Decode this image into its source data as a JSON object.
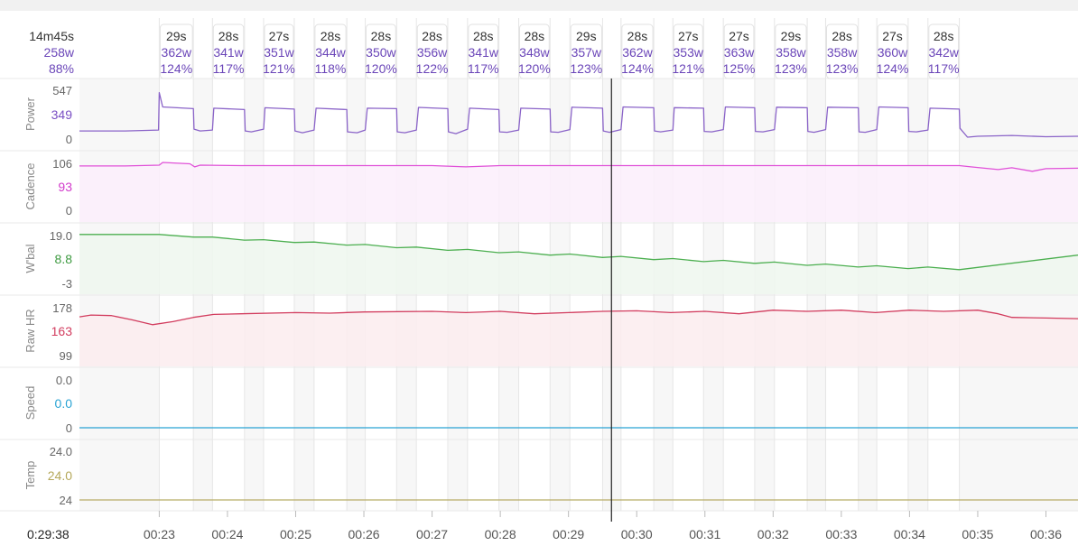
{
  "summary": {
    "duration": "14m45s",
    "avg_power": "258w",
    "pct_ftp": "88%"
  },
  "cursor_time": "0:29:38",
  "x_axis": {
    "ticks": [
      "00:23",
      "00:24",
      "00:25",
      "00:26",
      "00:27",
      "00:28",
      "00:29",
      "00:30",
      "00:31",
      "00:32",
      "00:33",
      "00:34",
      "00:35",
      "00:36"
    ],
    "range_minutes": [
      21.83,
      36.47
    ]
  },
  "laps": [
    {
      "start": 23.0,
      "end": 23.5,
      "duration": "29s",
      "power": "362w",
      "pct": "124%"
    },
    {
      "start": 23.78,
      "end": 24.25,
      "duration": "28s",
      "power": "341w",
      "pct": "117%"
    },
    {
      "start": 24.53,
      "end": 24.98,
      "duration": "27s",
      "power": "351w",
      "pct": "121%"
    },
    {
      "start": 25.27,
      "end": 25.75,
      "duration": "28s",
      "power": "344w",
      "pct": "118%"
    },
    {
      "start": 26.02,
      "end": 26.48,
      "duration": "28s",
      "power": "350w",
      "pct": "120%"
    },
    {
      "start": 26.77,
      "end": 27.23,
      "duration": "28s",
      "power": "356w",
      "pct": "122%"
    },
    {
      "start": 27.52,
      "end": 27.98,
      "duration": "28s",
      "power": "341w",
      "pct": "117%"
    },
    {
      "start": 28.27,
      "end": 28.73,
      "duration": "28s",
      "power": "348w",
      "pct": "120%"
    },
    {
      "start": 29.02,
      "end": 29.5,
      "duration": "29s",
      "power": "357w",
      "pct": "123%"
    },
    {
      "start": 29.77,
      "end": 30.25,
      "duration": "28s",
      "power": "362w",
      "pct": "124%"
    },
    {
      "start": 30.53,
      "end": 30.98,
      "duration": "27s",
      "power": "353w",
      "pct": "121%"
    },
    {
      "start": 31.27,
      "end": 31.73,
      "duration": "27s",
      "power": "363w",
      "pct": "125%"
    },
    {
      "start": 32.02,
      "end": 32.5,
      "duration": "29s",
      "power": "358w",
      "pct": "123%"
    },
    {
      "start": 32.77,
      "end": 33.25,
      "duration": "28s",
      "power": "358w",
      "pct": "123%"
    },
    {
      "start": 33.52,
      "end": 33.98,
      "duration": "27s",
      "power": "360w",
      "pct": "124%"
    },
    {
      "start": 34.27,
      "end": 34.73,
      "duration": "28s",
      "power": "342w",
      "pct": "117%"
    }
  ],
  "cursor_minute": 29.63,
  "chart_data": {
    "type": "line",
    "x_unit": "minutes",
    "series": [
      {
        "name": "Power",
        "color": "#8a63c8",
        "fill": "none",
        "ylim": [
          0,
          547
        ],
        "tick_labels": [
          "547",
          "349",
          "0"
        ],
        "current_value_color": "#7a4fc4",
        "x": [
          21.83,
          22.5,
          22.99,
          23.0,
          23.05,
          23.5,
          23.51,
          23.6,
          23.78,
          23.8,
          24.25,
          24.26,
          24.35,
          24.53,
          24.55,
          24.98,
          24.99,
          25.1,
          25.27,
          25.3,
          25.75,
          25.76,
          25.9,
          26.02,
          26.05,
          26.48,
          26.49,
          26.6,
          26.77,
          26.8,
          27.23,
          27.24,
          27.35,
          27.52,
          27.55,
          27.98,
          27.99,
          28.1,
          28.27,
          28.3,
          28.73,
          28.74,
          28.85,
          29.02,
          29.05,
          29.5,
          29.51,
          29.6,
          29.77,
          29.8,
          30.25,
          30.26,
          30.35,
          30.53,
          30.55,
          30.98,
          30.99,
          31.1,
          31.27,
          31.3,
          31.73,
          31.74,
          31.85,
          32.02,
          32.05,
          32.5,
          32.51,
          32.6,
          32.77,
          32.8,
          33.25,
          33.26,
          33.35,
          33.52,
          33.55,
          33.98,
          33.99,
          34.1,
          34.27,
          34.3,
          34.73,
          34.74,
          34.85,
          35.0,
          35.5,
          36.0,
          36.47
        ],
        "y": [
          90,
          90,
          100,
          520,
          360,
          340,
          110,
          90,
          100,
          345,
          330,
          90,
          80,
          110,
          350,
          335,
          90,
          70,
          100,
          345,
          330,
          80,
          70,
          100,
          345,
          340,
          80,
          70,
          100,
          355,
          340,
          80,
          60,
          110,
          345,
          330,
          80,
          75,
          100,
          345,
          335,
          80,
          75,
          105,
          357,
          345,
          90,
          75,
          105,
          360,
          350,
          90,
          80,
          100,
          352,
          345,
          85,
          80,
          105,
          360,
          350,
          85,
          80,
          105,
          357,
          350,
          85,
          75,
          105,
          357,
          350,
          80,
          75,
          105,
          360,
          350,
          85,
          80,
          100,
          345,
          335,
          120,
          20,
          30,
          40,
          25,
          30
        ]
      },
      {
        "name": "Cadence",
        "color": "#e052d8",
        "fill": "#fbeefb",
        "ylim": [
          0,
          106
        ],
        "tick_labels": [
          "106",
          "93",
          "0"
        ],
        "current_value_color": "#d23ccb",
        "x": [
          21.83,
          22.5,
          23.0,
          23.05,
          23.45,
          23.52,
          23.6,
          24.2,
          25.0,
          26.0,
          27.0,
          27.5,
          28.0,
          29.0,
          30.0,
          31.0,
          32.0,
          33.0,
          34.0,
          34.73,
          34.9,
          35.3,
          35.5,
          35.8,
          36.0,
          36.47
        ],
        "y": [
          100,
          100,
          102,
          108,
          105,
          98,
          102,
          101,
          101,
          101,
          101,
          98,
          101,
          101,
          101,
          101,
          101,
          101,
          101,
          101,
          98,
          92,
          96,
          88,
          94,
          95
        ]
      },
      {
        "name": "W'bal",
        "color": "#4caf50",
        "fill": "#eef7ee",
        "ylim": [
          -3,
          19
        ],
        "tick_labels": [
          "19.0",
          "8.8",
          "-3"
        ],
        "current_value_color": "#3d9a40",
        "x": [
          21.83,
          23.0,
          23.5,
          23.78,
          24.25,
          24.53,
          24.98,
          25.27,
          25.75,
          26.02,
          26.48,
          26.77,
          27.23,
          27.52,
          27.98,
          28.27,
          28.73,
          29.02,
          29.5,
          29.77,
          30.25,
          30.53,
          30.98,
          31.27,
          31.73,
          32.02,
          32.5,
          32.77,
          33.25,
          33.52,
          33.98,
          34.27,
          34.73,
          36.47
        ],
        "y": [
          19.5,
          19.5,
          18.3,
          18.3,
          16.9,
          17.1,
          15.8,
          16.0,
          14.6,
          14.9,
          13.4,
          13.7,
          12.2,
          12.6,
          11.1,
          11.5,
          10.0,
          10.5,
          8.9,
          9.4,
          7.9,
          8.4,
          7.0,
          7.6,
          6.2,
          6.8,
          5.3,
          5.9,
          4.5,
          5.1,
          3.8,
          4.5,
          3.3,
          10.0
        ]
      },
      {
        "name": "Raw HR",
        "color": "#d23c5e",
        "fill": "#fbecef",
        "ylim": [
          99,
          178
        ],
        "tick_labels": [
          "178",
          "163",
          "99"
        ],
        "current_value_color": "#d23c5e",
        "x": [
          21.83,
          22.0,
          22.3,
          22.6,
          22.9,
          23.2,
          23.5,
          23.8,
          24.2,
          25.0,
          25.5,
          26.0,
          27.0,
          27.5,
          28.0,
          28.5,
          29.0,
          29.5,
          30.0,
          30.5,
          31.0,
          31.5,
          32.0,
          32.5,
          33.0,
          33.5,
          34.0,
          34.5,
          35.0,
          35.3,
          35.5,
          36.0,
          36.47
        ],
        "y": [
          163,
          166,
          165,
          158,
          150,
          155,
          162,
          167,
          168,
          170,
          169,
          171,
          172,
          170,
          172,
          168,
          170,
          172,
          173,
          170,
          172,
          168,
          174,
          172,
          174,
          170,
          174,
          172,
          174,
          168,
          162,
          161,
          160
        ]
      },
      {
        "name": "Speed",
        "color": "#29a3d4",
        "fill": "none",
        "ylim": [
          0,
          1
        ],
        "tick_labels": [
          "0.0",
          "0.0",
          "0"
        ],
        "current_value_color": "#29a3d4",
        "x": [
          21.83,
          36.47
        ],
        "y": [
          0,
          0
        ]
      },
      {
        "name": "Temp",
        "color": "#b8ad67",
        "fill": "none",
        "ylim": [
          24,
          25
        ],
        "tick_labels": [
          "24.0",
          "24.0",
          "24"
        ],
        "current_value_color": "#b5a85a",
        "x": [
          21.83,
          36.47
        ],
        "y": [
          24,
          24
        ]
      }
    ]
  }
}
